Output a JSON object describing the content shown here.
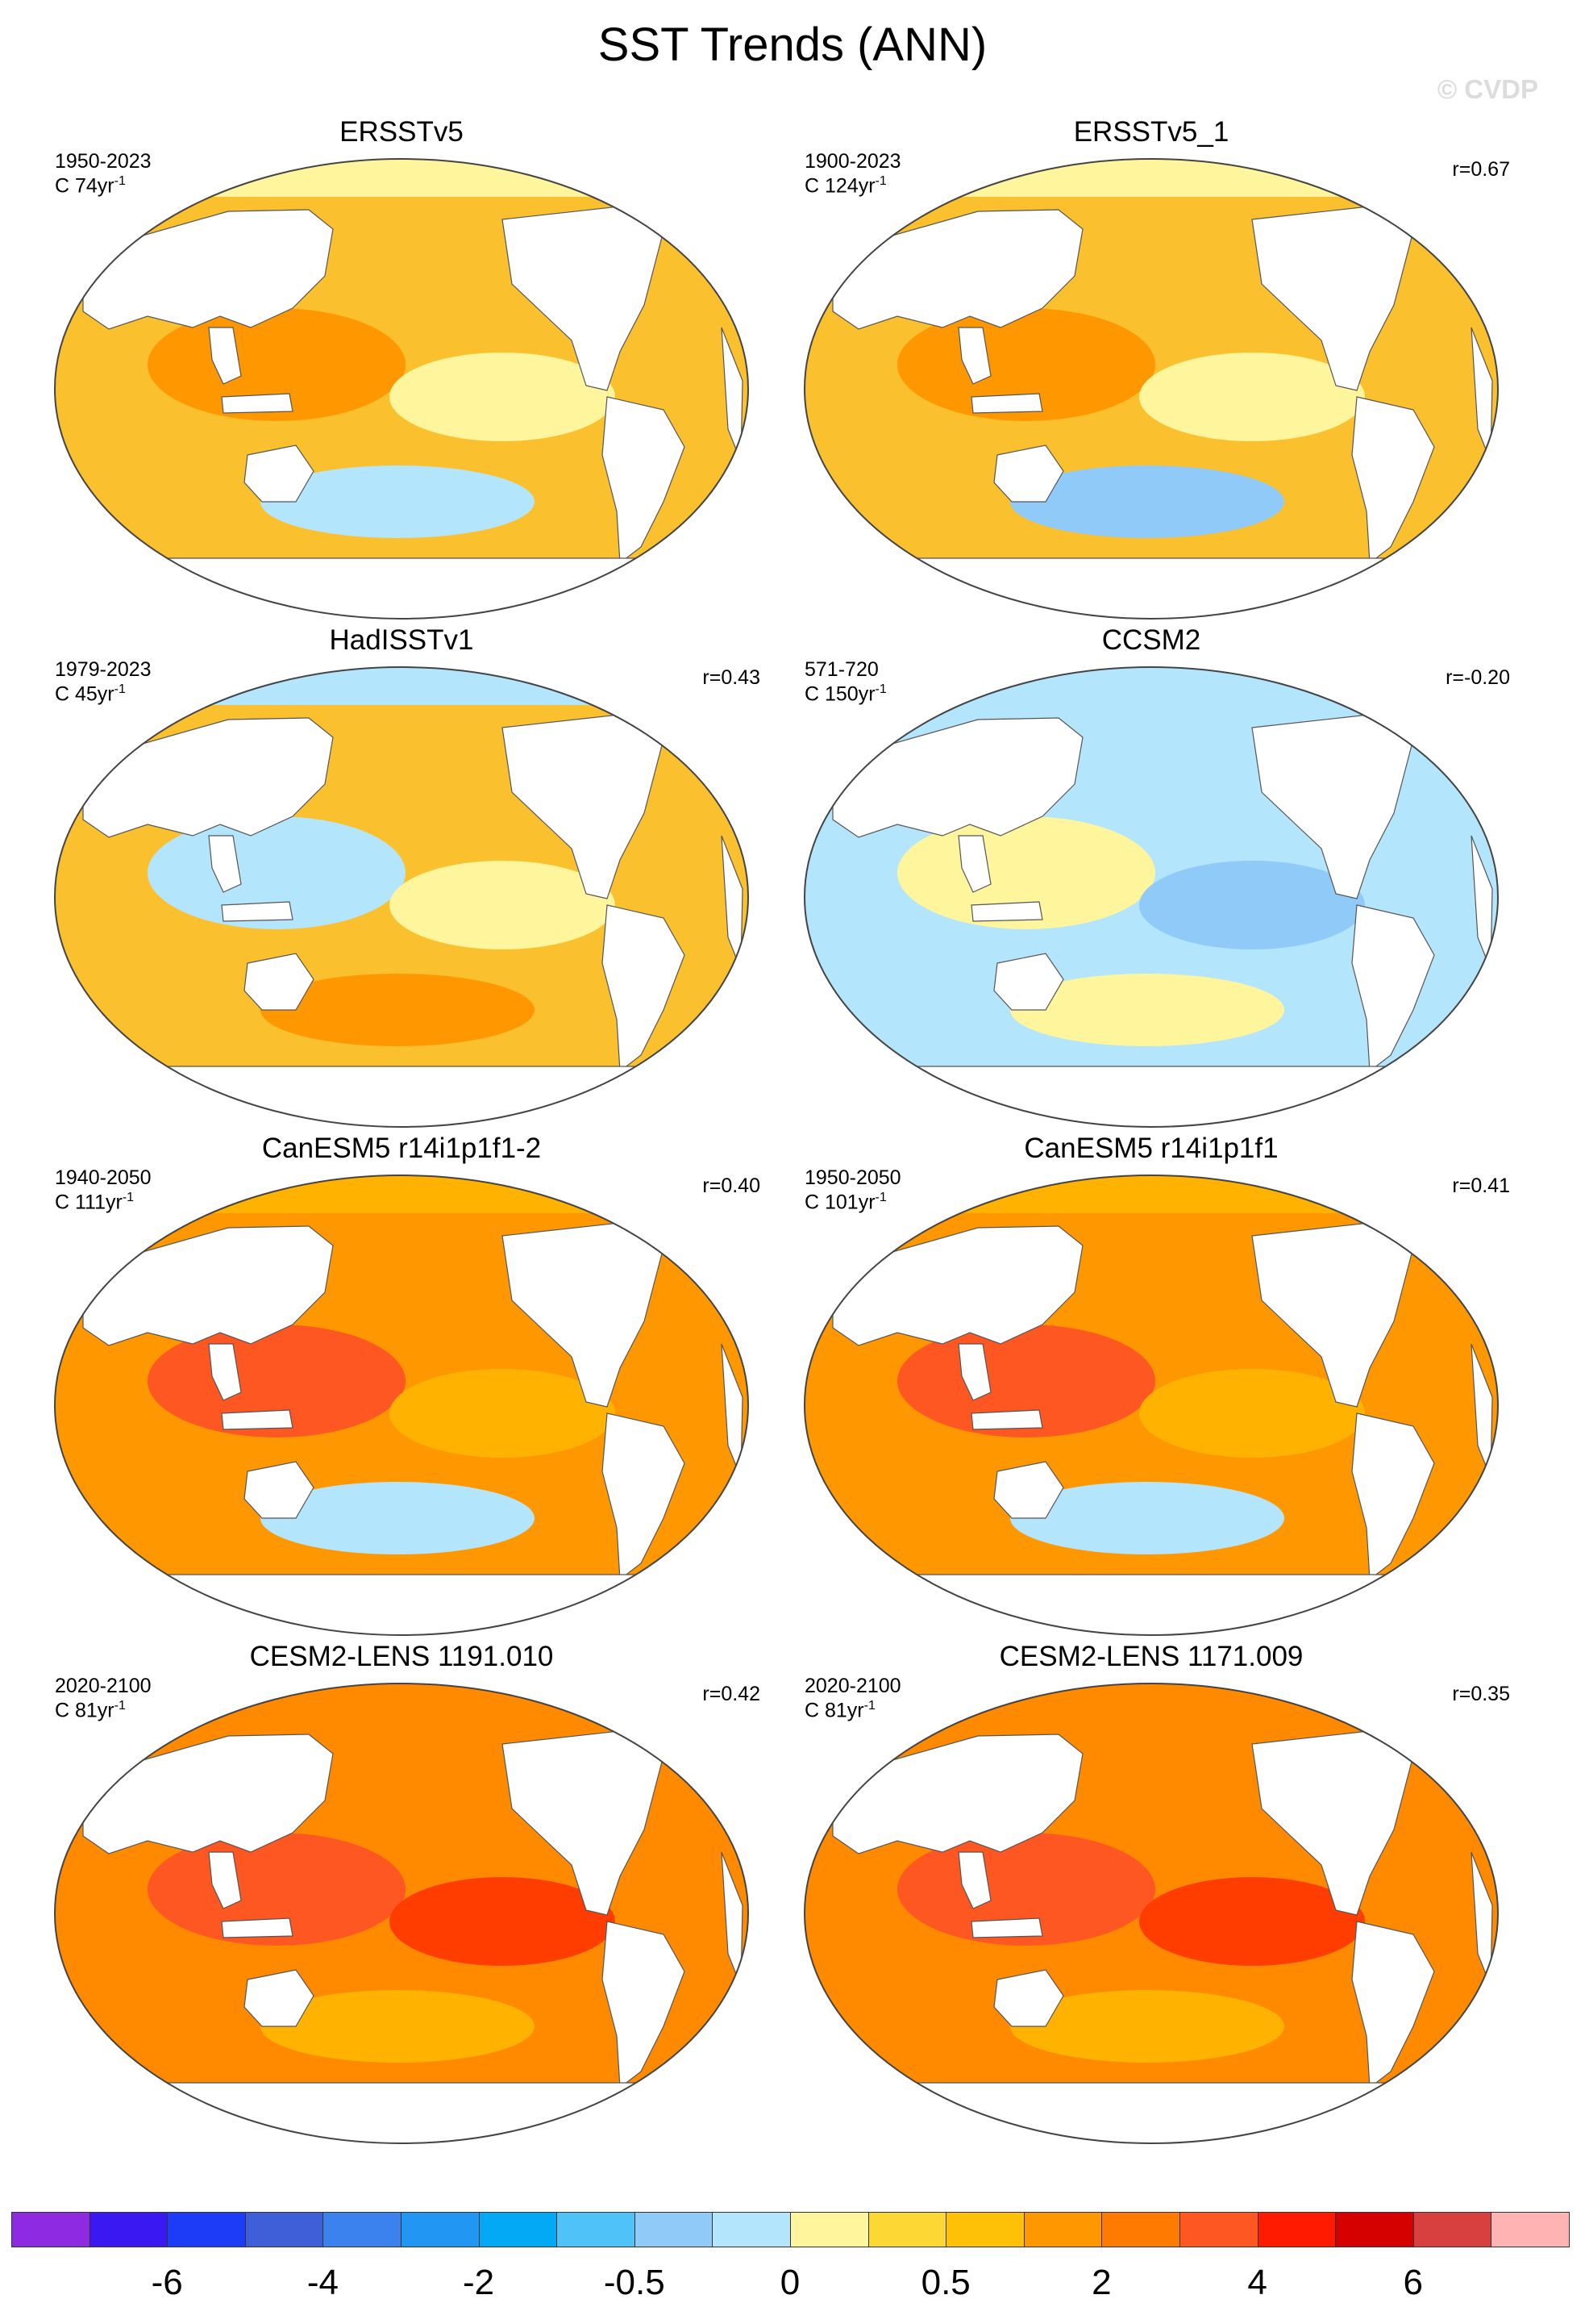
{
  "title": "SST Trends (ANN)",
  "watermark": "© CVDP",
  "panels": [
    {
      "title": "ERSSTv5",
      "period": "1950-2023",
      "units": "C 74yr",
      "r": "",
      "colors": {
        "ocean": "#fbc02d",
        "blobs": [
          "#ff9800",
          "#fff59d",
          "#b3e5fc"
        ],
        "pole": "#fff59d"
      }
    },
    {
      "title": "ERSSTv5_1",
      "period": "1900-2023",
      "units": "C 124yr",
      "r": "r=0.67",
      "colors": {
        "ocean": "#fbc02d",
        "blobs": [
          "#ff9800",
          "#fff59d",
          "#90caf9"
        ],
        "pole": "#fff59d"
      }
    },
    {
      "title": "HadISSTv1",
      "period": "1979-2023",
      "units": "C 45yr",
      "r": "r=0.43",
      "colors": {
        "ocean": "#fbc02d",
        "blobs": [
          "#b3e5fc",
          "#fff59d",
          "#ff9800"
        ],
        "pole": "#b3e5fc"
      }
    },
    {
      "title": "CCSM2",
      "period": "571-720",
      "units": "C 150yr",
      "r": "r=-0.20",
      "colors": {
        "ocean": "#b3e5fc",
        "blobs": [
          "#fff59d",
          "#90caf9",
          "#fff59d"
        ],
        "pole": "#b3e5fc"
      }
    },
    {
      "title": "CanESM5 r14i1p1f1-2",
      "period": "1940-2050",
      "units": "C 111yr",
      "r": "r=0.40",
      "colors": {
        "ocean": "#ff9800",
        "blobs": [
          "#ff5722",
          "#ffb300",
          "#b3e5fc"
        ],
        "pole": "#ffb300"
      }
    },
    {
      "title": "CanESM5 r14i1p1f1",
      "period": "1950-2050",
      "units": "C 101yr",
      "r": "r=0.41",
      "colors": {
        "ocean": "#ff9800",
        "blobs": [
          "#ff5722",
          "#ffb300",
          "#b3e5fc"
        ],
        "pole": "#ffb300"
      }
    },
    {
      "title": "CESM2-LENS 1191.010",
      "period": "2020-2100",
      "units": "C 81yr",
      "r": "r=0.42",
      "colors": {
        "ocean": "#ff8a00",
        "blobs": [
          "#ff5722",
          "#ff3d00",
          "#ffb300"
        ],
        "pole": "#ff8a00"
      }
    },
    {
      "title": "CESM2-LENS 1171.009",
      "period": "2020-2100",
      "units": "C 81yr",
      "r": "r=0.35",
      "colors": {
        "ocean": "#ff8a00",
        "blobs": [
          "#ff5722",
          "#ff3d00",
          "#ffb300"
        ],
        "pole": "#ff8a00"
      }
    }
  ],
  "units_exponent": "-1",
  "colorbar": {
    "colors": [
      "#8e2be2",
      "#3a18f2",
      "#1c3cf7",
      "#3f5fd9",
      "#3b82ef",
      "#2196f3",
      "#03a9f4",
      "#4fc3f7",
      "#90caf9",
      "#b3e5fc",
      "#fff59d",
      "#fdd835",
      "#ffc107",
      "#ff9800",
      "#ff7a00",
      "#ff5722",
      "#ff1a00",
      "#d50000",
      "#d84040",
      "#ffb3b3"
    ],
    "labels": [
      "-6",
      "-4",
      "-2",
      "-0.5",
      "0",
      "0.5",
      "2",
      "4",
      "6"
    ]
  }
}
